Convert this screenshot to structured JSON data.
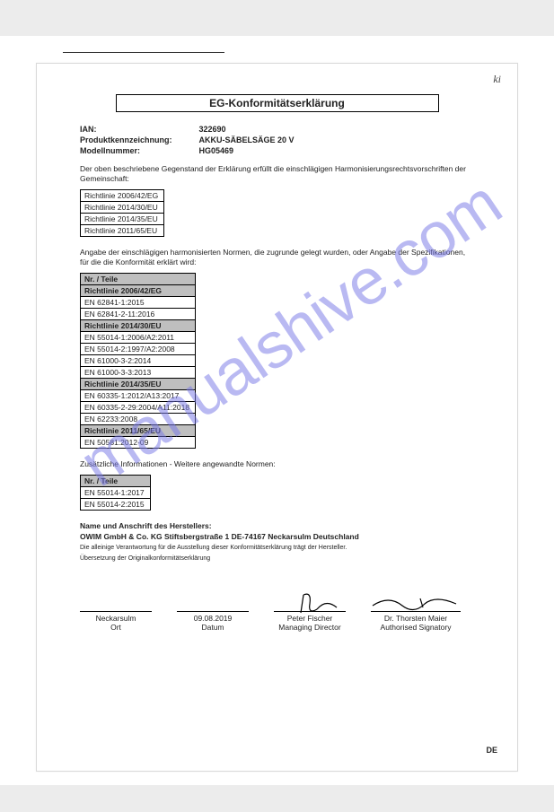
{
  "watermark": "manualshive.com",
  "handwritten_mark": "ki",
  "title": "EG-Konformitätserklärung",
  "info": {
    "ian_label": "IAN:",
    "ian_value": "322690",
    "prod_label": "Produktkennzeichnung:",
    "prod_value": "AKKU-SÄBELSÄGE 20 V",
    "model_label": "Modellnummer:",
    "model_value": "HG05469"
  },
  "para1": "Der oben beschriebene Gegenstand der Erklärung erfüllt die einschlägigen Harmonisierungsrechtsvorschriften der Gemeinschaft:",
  "directives": [
    "Richtlinie 2006/42/EG",
    "Richtlinie 2014/30/EU",
    "Richtlinie 2014/35/EU",
    "Richtlinie 2011/65/EU"
  ],
  "para2": "Angabe der einschlägigen harmonisierten Normen, die zugrunde gelegt wurden, oder Angabe der Spezifikationen, für die die Konformität erklärt wird:",
  "standards_header": "Nr. / Teile",
  "standards": [
    {
      "t": "Richtlinie 2006/42/EG",
      "h": true
    },
    {
      "t": "EN 62841-1:2015",
      "h": false
    },
    {
      "t": "EN 62841-2-11:2016",
      "h": false
    },
    {
      "t": "Richtlinie 2014/30/EU",
      "h": true
    },
    {
      "t": "EN 55014-1:2006/A2:2011",
      "h": false
    },
    {
      "t": "EN 55014-2:1997/A2:2008",
      "h": false
    },
    {
      "t": "EN 61000-3-2:2014",
      "h": false
    },
    {
      "t": "EN 61000-3-3:2013",
      "h": false
    },
    {
      "t": "Richtlinie 2014/35/EU",
      "h": true
    },
    {
      "t": "EN 60335-1:2012/A13:2017",
      "h": false
    },
    {
      "t": "EN 60335-2-29:2004/A11:2018",
      "h": false
    },
    {
      "t": "EN 62233:2008",
      "h": false
    },
    {
      "t": "Richtlinie 2011/65/EU",
      "h": true
    },
    {
      "t": "EN 50581:2012-09",
      "h": false
    }
  ],
  "para3": "Zusätzliche Informationen - Weitere angewandte Normen:",
  "additional_header": "Nr. / Teile",
  "additional": [
    "EN 55014-1:2017",
    "EN 55014-2:2015"
  ],
  "mfr": {
    "line1": "Name und Anschrift des Herstellers:",
    "line2": "OWIM GmbH & Co. KG  Stiftsbergstraße 1  DE-74167 Neckarsulm Deutschland",
    "fine1": "Die alleinige Verantwortung für die Ausstellung dieser Konformitätserklärung trägt der Hersteller.",
    "fine2": "Übersetzung der Originalkonformitätserklärung"
  },
  "sig": {
    "place": "Neckarsulm",
    "place_lbl": "Ort",
    "date": "09.08.2019",
    "date_lbl": "Datum",
    "name1": "Peter Fischer",
    "role1": "Managing Director",
    "name2": "Dr. Thorsten Maier",
    "role2": "Authorised Signatory"
  },
  "lang_code": "DE",
  "colors": {
    "watermark": "#7a7ae8",
    "header_bg": "#bfbfbf",
    "bar": "#ececec"
  }
}
